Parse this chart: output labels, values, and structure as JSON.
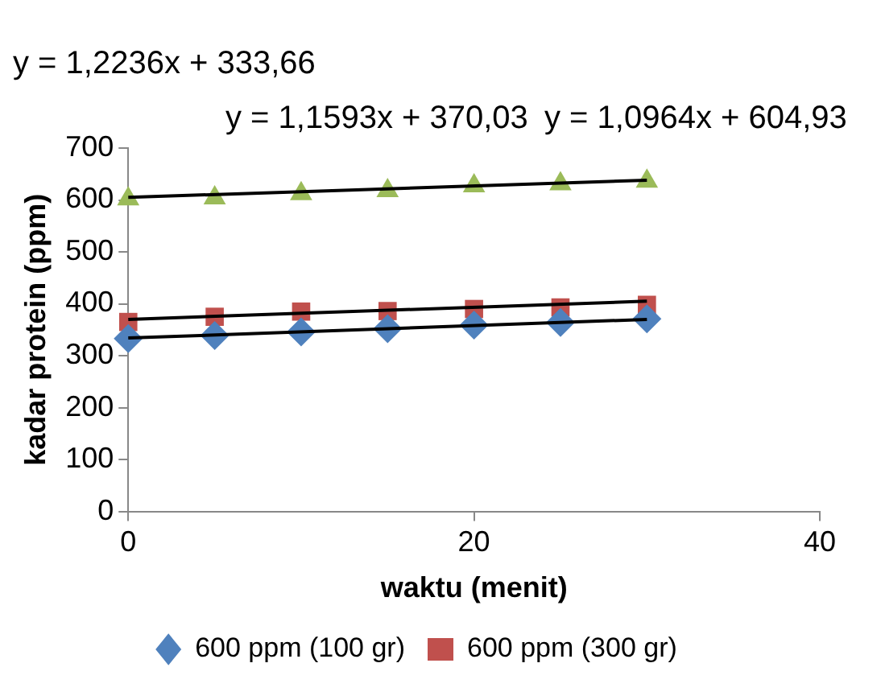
{
  "chart_data": {
    "type": "scatter",
    "xlabel": "waktu (menit)",
    "ylabel": "kadar protein (ppm)",
    "xlim": [
      0,
      40
    ],
    "xticks": [
      0,
      20,
      40
    ],
    "ylim": [
      0,
      700
    ],
    "yticks": [
      0,
      100,
      200,
      300,
      400,
      500,
      600,
      700
    ],
    "grid": false,
    "legend": "bottom",
    "annotations": [
      "y = 1,2236x + 333,66",
      "y = 1,1593x + 370,03",
      "y = 1,0964x + 604,93"
    ],
    "series": [
      {
        "name": "600 ppm (100 gr)",
        "color": "#4f81bd",
        "marker": "diamond",
        "x": [
          0,
          5,
          10,
          15,
          20,
          25,
          30
        ],
        "values": [
          333,
          339,
          346,
          352,
          359,
          364,
          371
        ]
      },
      {
        "name": "600 ppm (300 gr)",
        "color": "#c0504d",
        "marker": "square",
        "x": [
          0,
          5,
          10,
          15,
          20,
          25,
          30
        ],
        "values": [
          365,
          375,
          385,
          386,
          390,
          393,
          398
        ]
      },
      {
        "color": "#9bbb59",
        "marker": "triangle",
        "x": [
          0,
          5,
          10,
          15,
          20,
          25,
          30
        ],
        "values": [
          602,
          604,
          612,
          618,
          627,
          631,
          636
        ]
      },
      {
        "type": "line",
        "color": "#000000",
        "marker": "none",
        "x": [
          0,
          30
        ],
        "values": [
          334,
          370
        ]
      },
      {
        "type": "line",
        "color": "#000000",
        "marker": "none",
        "x": [
          0,
          30
        ],
        "values": [
          370,
          405
        ]
      },
      {
        "type": "line",
        "color": "#000000",
        "marker": "none",
        "x": [
          0,
          30
        ],
        "values": [
          605,
          638
        ]
      }
    ]
  }
}
